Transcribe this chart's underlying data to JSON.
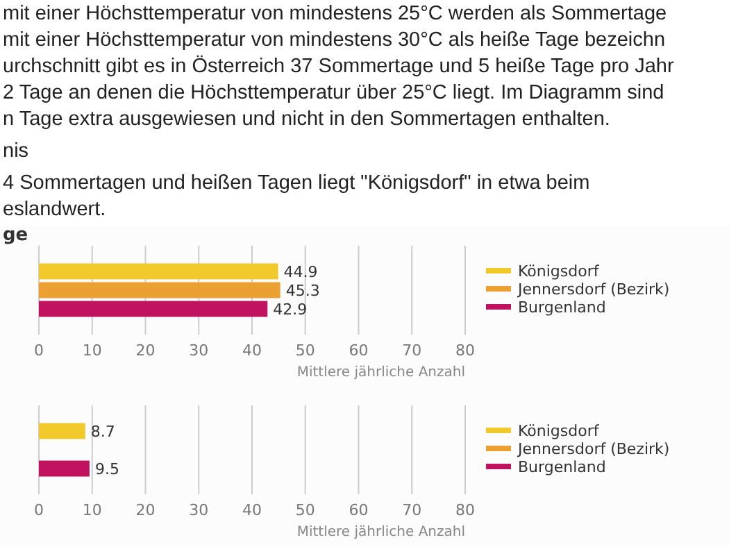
{
  "chart_data": [
    {
      "type": "other",
      "annotations": [
        "mit einer Höchsttemperatur von mindestens 25°C werden als Sommertage",
        "mit einer Höchsttemperatur von mindestens 30°C als heiße Tage bezeichn",
        "urchschnitt gibt es in Österreich 37 Sommertage und 5 heiße Tage pro Jahr",
        "2 Tage an denen die Höchsttemperatur über 25°C liegt. Im Diagramm sind",
        "n Tage extra ausgewiesen und nicht in den Sommertagen enthalten.",
        "nis",
        "4 Sommertagen und heißen Tagen liegt \"Königsdorf\" in etwa beim",
        "eslandwert."
      ]
    },
    {
      "type": "bar",
      "orientation": "horizontal",
      "title": "ge",
      "categories": [
        null
      ],
      "xlim": [
        0,
        80
      ],
      "xticks": [
        0,
        10,
        20,
        30,
        40,
        50,
        60,
        70,
        80
      ],
      "xlabel": "Mittlere jährliche Anzahl",
      "grid": "x",
      "legend": "right",
      "data_labels": true,
      "series": [
        {
          "name": "Königsdorf",
          "color": "#f2c92b",
          "values": [
            44.9
          ]
        },
        {
          "name": "Jennersdorf (Bezirk)",
          "color": "#eda032",
          "values": [
            45.3
          ]
        },
        {
          "name": "Burgenland",
          "color": "#c0125e",
          "values": [
            42.9
          ]
        }
      ]
    },
    {
      "type": "bar",
      "orientation": "horizontal",
      "categories": [
        null
      ],
      "xlim": [
        0,
        80
      ],
      "xticks": [
        0,
        10,
        20,
        30,
        40,
        50,
        60,
        70,
        80
      ],
      "xlabel": "Mittlere jährliche Anzahl",
      "grid": "x",
      "legend": "right",
      "data_labels": true,
      "series": [
        {
          "name": "Königsdorf",
          "color": "#f2c92b",
          "values": [
            8.7
          ]
        },
        {
          "name": "Jennersdorf (Bezirk)",
          "color": "#eda032",
          "values": [
            null
          ]
        },
        {
          "name": "Burgenland",
          "color": "#c0125e",
          "values": [
            9.5
          ]
        }
      ]
    }
  ]
}
